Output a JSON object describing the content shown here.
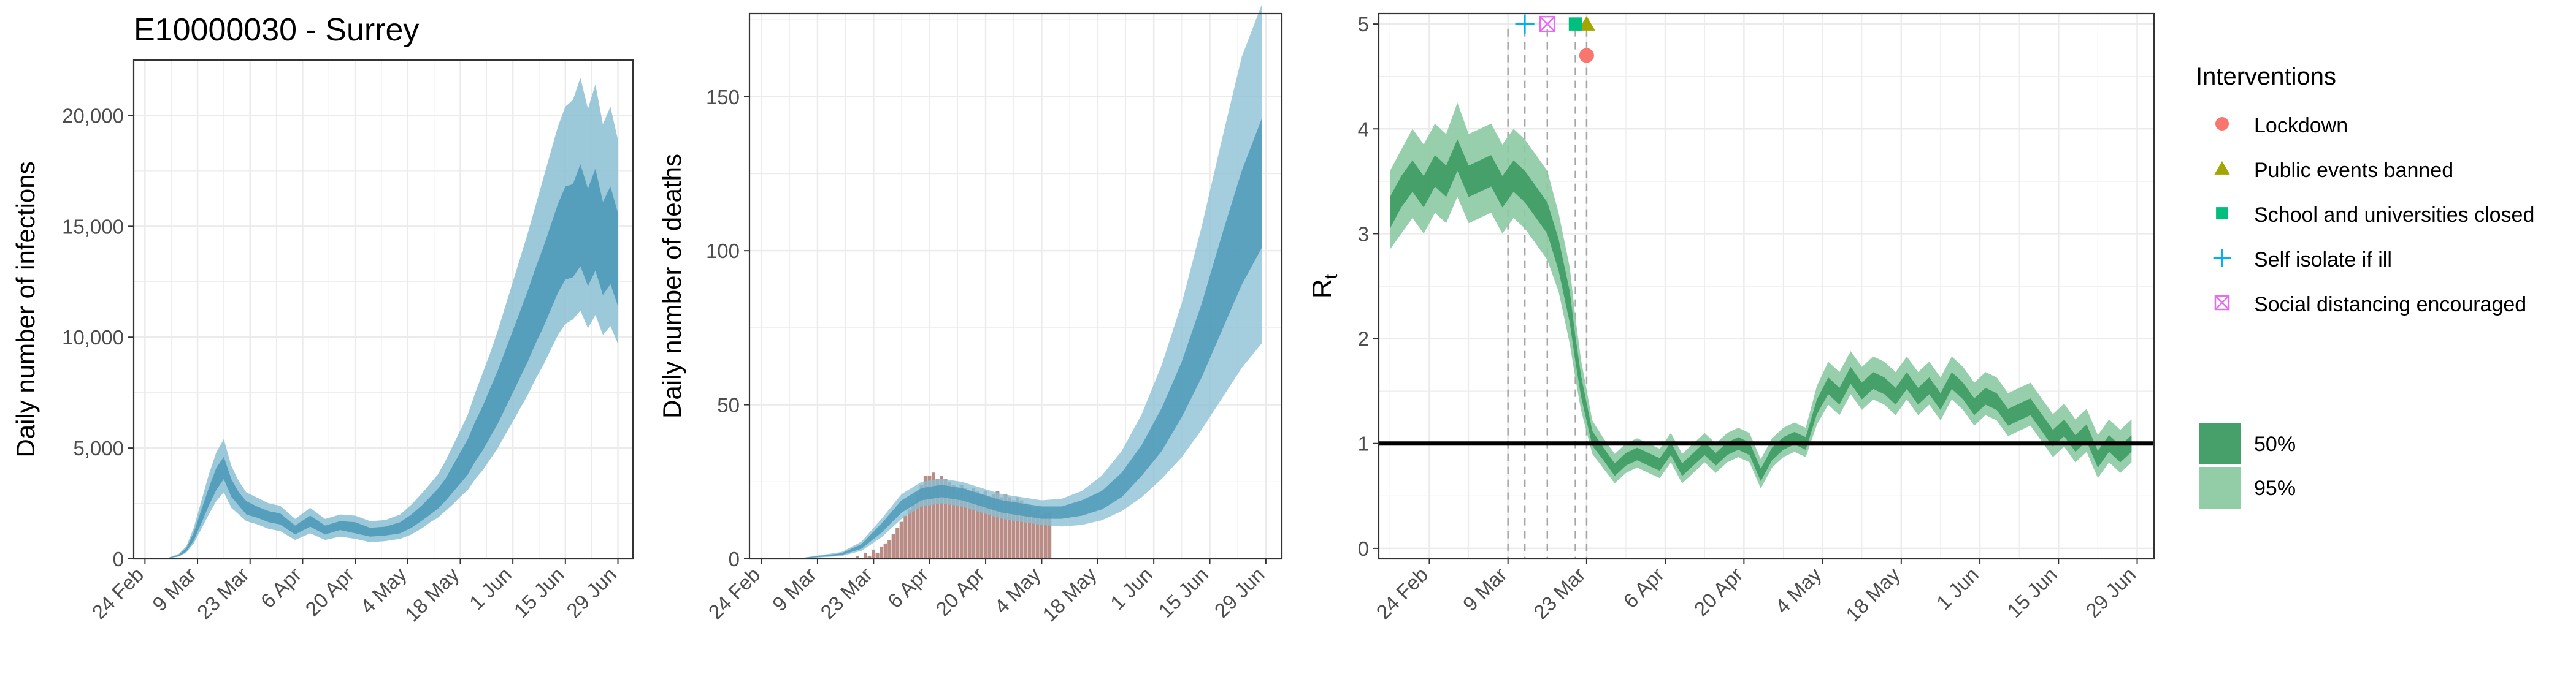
{
  "title": "E10000030 - Surrey",
  "colors": {
    "infection_band": "#4e9ab8",
    "infection_band_95": "#8bbfd4",
    "death_bars": "#b98c86",
    "rt_50": "#3d9a62",
    "rt_95": "#8ccaa3",
    "lockdown": "#f8766d",
    "events": "#a3a500",
    "schools": "#00bf7d",
    "isolate": "#00b0f6",
    "distancing": "#e76bf3",
    "grid": "#ebebeb",
    "axis_text": "#4d4d4d"
  },
  "chart_data": [
    {
      "type": "area",
      "name": "infections",
      "title": "E10000030 - Surrey",
      "xlabel": "",
      "ylabel": "Daily number of infections",
      "xticks": [
        "24 Feb",
        "9 Mar",
        "23 Mar",
        "6 Apr",
        "20 Apr",
        "4 May",
        "18 May",
        "1 Jun",
        "15 Jun",
        "29 Jun"
      ],
      "yticks": [
        "0",
        "5,000",
        "10,000",
        "15,000",
        "20,000"
      ],
      "ytick_values": [
        0,
        5000,
        10000,
        15000,
        20000
      ],
      "xlim": [
        -3,
        130
      ],
      "ylim": [
        0,
        22500
      ],
      "day_index_note": "day 0 = 24 Feb",
      "days": [
        2,
        6,
        9,
        11,
        13,
        15,
        17,
        19,
        21,
        23,
        25,
        27,
        30,
        33,
        36,
        40,
        44,
        48,
        52,
        56,
        60,
        64,
        68,
        71,
        74,
        76,
        78,
        80,
        82,
        84,
        86,
        88,
        90,
        92,
        94,
        96,
        98,
        100,
        102,
        104,
        106,
        108,
        110,
        112,
        114,
        116,
        118,
        120,
        122,
        124,
        126
      ],
      "median": [
        0,
        30,
        150,
        400,
        1000,
        1900,
        2800,
        3600,
        4100,
        3200,
        2700,
        2300,
        2100,
        1900,
        1800,
        1300,
        1700,
        1300,
        1500,
        1400,
        1200,
        1250,
        1400,
        1700,
        2100,
        2400,
        2700,
        3100,
        3600,
        4100,
        4600,
        5300,
        5900,
        6600,
        7300,
        8100,
        8900,
        9700,
        10500,
        11400,
        12200,
        13100,
        14000,
        14700,
        14800,
        15500,
        14500,
        15300,
        14000,
        14600,
        13500
      ],
      "lower50": [
        0,
        25,
        120,
        330,
        820,
        1600,
        2400,
        3100,
        3600,
        2800,
        2400,
        2000,
        1850,
        1650,
        1550,
        1100,
        1450,
        1100,
        1300,
        1150,
        1000,
        1050,
        1150,
        1400,
        1750,
        2000,
        2250,
        2600,
        3000,
        3400,
        3800,
        4400,
        4900,
        5500,
        6100,
        6800,
        7500,
        8200,
        8900,
        9700,
        10400,
        11200,
        12000,
        12600,
        12700,
        13200,
        12300,
        13000,
        11900,
        12400,
        11400
      ],
      "upper50": [
        0,
        35,
        180,
        470,
        1180,
        2200,
        3200,
        4100,
        4600,
        3600,
        3000,
        2600,
        2350,
        2150,
        2050,
        1500,
        1950,
        1500,
        1700,
        1650,
        1400,
        1450,
        1650,
        2000,
        2450,
        2800,
        3150,
        3600,
        4200,
        4800,
        5400,
        6200,
        6900,
        7700,
        8500,
        9400,
        10300,
        11200,
        12100,
        13100,
        14000,
        15000,
        16000,
        16800,
        16900,
        17800,
        16700,
        17600,
        16100,
        16800,
        15600
      ],
      "lower95": [
        0,
        20,
        100,
        280,
        700,
        1350,
        2000,
        2600,
        3000,
        2300,
        2000,
        1700,
        1550,
        1350,
        1250,
        850,
        1150,
        850,
        1000,
        900,
        750,
        800,
        900,
        1100,
        1400,
        1650,
        1850,
        2150,
        2450,
        2800,
        3100,
        3600,
        4000,
        4500,
        5000,
        5600,
        6200,
        6800,
        7400,
        8100,
        8700,
        9400,
        10100,
        10600,
        10800,
        11200,
        10400,
        11000,
        10100,
        10500,
        9700
      ],
      "upper95": [
        0,
        40,
        220,
        560,
        1400,
        2600,
        3800,
        4800,
        5400,
        4200,
        3500,
        3000,
        2750,
        2500,
        2400,
        1800,
        2300,
        1800,
        2000,
        1950,
        1700,
        1750,
        2000,
        2450,
        3000,
        3400,
        3800,
        4400,
        5100,
        5800,
        6500,
        7500,
        8400,
        9300,
        10300,
        11400,
        12500,
        13600,
        14700,
        15900,
        17100,
        18300,
        19500,
        20400,
        20700,
        21700,
        20300,
        21400,
        19600,
        20400,
        18900
      ]
    },
    {
      "type": "bar+area",
      "name": "deaths",
      "ylabel": "Daily number of deaths",
      "xticks": [
        "24 Feb",
        "9 Mar",
        "23 Mar",
        "6 Apr",
        "20 Apr",
        "4 May",
        "18 May",
        "1 Jun",
        "15 Jun",
        "29 Jun"
      ],
      "yticks": [
        "0",
        "50",
        "100",
        "150"
      ],
      "ytick_values": [
        0,
        50,
        100,
        150
      ],
      "xlim": [
        -3,
        130
      ],
      "ylim": [
        0,
        177
      ],
      "bars_start_day": 24,
      "observed_deaths": [
        1,
        0,
        2,
        1,
        3,
        2,
        4,
        5,
        6,
        8,
        10,
        12,
        14,
        16,
        18,
        21,
        24,
        27,
        27,
        28,
        26,
        27,
        26,
        25,
        24,
        22,
        24,
        23,
        22,
        23,
        22,
        21,
        22,
        20,
        21,
        22,
        20,
        21,
        20,
        19,
        20,
        19,
        18,
        17,
        15,
        16,
        14,
        15,
        15
      ],
      "days": [
        0,
        10,
        20,
        25,
        30,
        35,
        40,
        45,
        50,
        55,
        60,
        65,
        70,
        75,
        80,
        85,
        90,
        95,
        100,
        105,
        110,
        115,
        120,
        125
      ],
      "median": [
        0,
        0.2,
        1.5,
        4,
        10,
        17,
        21,
        22,
        21,
        19,
        17,
        16,
        15,
        15,
        16,
        19,
        24,
        32,
        42,
        55,
        71,
        89,
        108,
        122
      ],
      "lower50": [
        0,
        0.15,
        1.2,
        3.3,
        8.5,
        15,
        19,
        20,
        19,
        17,
        15,
        14,
        13,
        13,
        14,
        16,
        20,
        27,
        35,
        46,
        59,
        74,
        89,
        101
      ],
      "upper50": [
        0,
        0.25,
        1.8,
        4.8,
        11.5,
        19,
        23,
        24,
        23,
        21,
        19,
        18,
        17,
        17,
        19,
        22,
        28,
        37,
        49,
        64,
        83,
        105,
        126,
        143
      ],
      "lower95": [
        0,
        0.1,
        0.9,
        2.6,
        7,
        13,
        17,
        18,
        17,
        15,
        13,
        12,
        11,
        10.5,
        11,
        12.5,
        15.5,
        20,
        26,
        33,
        42,
        52,
        62,
        70
      ],
      "upper95": [
        0,
        0.3,
        2.2,
        5.6,
        13,
        21,
        25,
        26,
        25,
        23,
        21,
        20,
        19,
        19.5,
        22,
        27,
        35,
        47,
        63,
        83,
        108,
        136,
        163,
        180
      ]
    },
    {
      "type": "line-band",
      "name": "rt",
      "ylabel": "R",
      "ylabel_subscript": "t",
      "xticks": [
        "24 Feb",
        "9 Mar",
        "23 Mar",
        "6 Apr",
        "20 Apr",
        "4 May",
        "18 May",
        "1 Jun",
        "15 Jun",
        "29 Jun"
      ],
      "yticks": [
        "0",
        "1",
        "2",
        "3",
        "4",
        "5"
      ],
      "ytick_values": [
        0,
        1,
        2,
        3,
        4,
        5
      ],
      "xlim": [
        -9,
        129
      ],
      "ylim": [
        -0.1,
        5.1
      ],
      "reference_line": 1,
      "days": [
        -7,
        -5,
        -3,
        -1,
        1,
        3,
        5,
        7,
        9,
        11,
        13,
        15,
        17,
        19,
        21,
        23,
        25,
        26,
        27,
        29,
        31,
        33,
        35,
        37,
        39,
        41,
        43,
        45,
        47,
        49,
        51,
        53,
        55,
        57,
        59,
        61,
        63,
        65,
        67,
        69,
        71,
        73,
        75,
        77,
        79,
        81,
        83,
        85,
        87,
        89,
        91,
        93,
        95,
        97,
        99,
        101,
        103,
        105,
        107,
        109,
        111,
        113,
        115,
        117,
        119,
        121,
        123,
        125
      ],
      "median": [
        3.2,
        3.4,
        3.55,
        3.4,
        3.6,
        3.5,
        3.75,
        3.5,
        3.55,
        3.6,
        3.4,
        3.55,
        3.45,
        3.3,
        3.15,
        2.8,
        2.3,
        1.9,
        1.55,
        1.05,
        0.9,
        0.75,
        0.85,
        0.9,
        0.85,
        0.8,
        0.95,
        0.75,
        0.85,
        0.95,
        0.85,
        0.95,
        1.0,
        0.95,
        0.7,
        0.9,
        1.0,
        1.05,
        1.0,
        1.35,
        1.55,
        1.45,
        1.65,
        1.5,
        1.6,
        1.55,
        1.45,
        1.6,
        1.45,
        1.55,
        1.4,
        1.6,
        1.5,
        1.35,
        1.45,
        1.4,
        1.25,
        1.3,
        1.35,
        1.2,
        1.05,
        1.15,
        1.0,
        1.1,
        0.85,
        1.0,
        0.9,
        1.0
      ],
      "lower50": [
        3.05,
        3.25,
        3.4,
        3.25,
        3.45,
        3.35,
        3.6,
        3.35,
        3.4,
        3.45,
        3.25,
        3.4,
        3.3,
        3.15,
        3.0,
        2.65,
        2.15,
        1.78,
        1.45,
        0.98,
        0.84,
        0.69,
        0.79,
        0.84,
        0.79,
        0.74,
        0.89,
        0.69,
        0.79,
        0.89,
        0.79,
        0.89,
        0.94,
        0.89,
        0.64,
        0.84,
        0.94,
        0.99,
        0.94,
        1.28,
        1.47,
        1.37,
        1.57,
        1.42,
        1.52,
        1.47,
        1.37,
        1.52,
        1.37,
        1.47,
        1.32,
        1.52,
        1.42,
        1.27,
        1.37,
        1.32,
        1.17,
        1.22,
        1.27,
        1.12,
        0.97,
        1.07,
        0.92,
        1.02,
        0.77,
        0.92,
        0.82,
        0.92
      ],
      "upper50": [
        3.35,
        3.55,
        3.7,
        3.55,
        3.75,
        3.65,
        3.9,
        3.65,
        3.7,
        3.75,
        3.55,
        3.7,
        3.6,
        3.45,
        3.3,
        2.95,
        2.45,
        2.02,
        1.65,
        1.12,
        0.96,
        0.81,
        0.91,
        0.96,
        0.91,
        0.86,
        1.01,
        0.81,
        0.91,
        1.01,
        0.91,
        1.01,
        1.06,
        1.01,
        0.76,
        0.96,
        1.06,
        1.11,
        1.06,
        1.42,
        1.63,
        1.53,
        1.73,
        1.58,
        1.68,
        1.63,
        1.53,
        1.68,
        1.53,
        1.63,
        1.48,
        1.68,
        1.58,
        1.43,
        1.53,
        1.48,
        1.33,
        1.38,
        1.43,
        1.28,
        1.13,
        1.23,
        1.08,
        1.18,
        0.93,
        1.08,
        0.98,
        1.08
      ],
      "lower95": [
        2.85,
        3.0,
        3.15,
        3.0,
        3.2,
        3.1,
        3.35,
        3.1,
        3.15,
        3.2,
        3.0,
        3.15,
        3.05,
        2.9,
        2.75,
        2.45,
        1.95,
        1.62,
        1.32,
        0.9,
        0.76,
        0.62,
        0.72,
        0.77,
        0.72,
        0.67,
        0.82,
        0.62,
        0.72,
        0.82,
        0.72,
        0.82,
        0.87,
        0.82,
        0.57,
        0.77,
        0.87,
        0.92,
        0.87,
        1.18,
        1.37,
        1.27,
        1.47,
        1.32,
        1.42,
        1.37,
        1.27,
        1.42,
        1.27,
        1.37,
        1.22,
        1.42,
        1.32,
        1.17,
        1.27,
        1.22,
        1.07,
        1.12,
        1.17,
        1.02,
        0.87,
        0.97,
        0.82,
        0.92,
        0.67,
        0.82,
        0.72,
        0.82
      ],
      "upper95": [
        3.6,
        3.8,
        4.0,
        3.85,
        4.05,
        3.95,
        4.25,
        3.95,
        4.0,
        4.05,
        3.85,
        4.0,
        3.9,
        3.75,
        3.6,
        3.2,
        2.68,
        2.2,
        1.8,
        1.22,
        1.05,
        0.9,
        1.0,
        1.05,
        1.0,
        0.95,
        1.1,
        0.9,
        1.0,
        1.1,
        1.0,
        1.1,
        1.15,
        1.1,
        0.85,
        1.05,
        1.15,
        1.2,
        1.15,
        1.55,
        1.78,
        1.68,
        1.88,
        1.73,
        1.83,
        1.78,
        1.68,
        1.83,
        1.68,
        1.78,
        1.63,
        1.83,
        1.73,
        1.58,
        1.68,
        1.63,
        1.48,
        1.53,
        1.58,
        1.43,
        1.28,
        1.38,
        1.23,
        1.33,
        1.08,
        1.23,
        1.13,
        1.23
      ],
      "interventions": [
        {
          "name": "Lockdown",
          "day": 28,
          "y": 4.7,
          "shape": "circle",
          "color": "#f8766d"
        },
        {
          "name": "Public events banned",
          "day": 28,
          "y": 5.0,
          "shape": "triangle",
          "color": "#a3a500"
        },
        {
          "name": "School and universities closed",
          "day": 26,
          "y": 5.0,
          "shape": "square",
          "color": "#00bf7d"
        },
        {
          "name": "Self isolate if ill",
          "day": 17,
          "y": 5.0,
          "shape": "plus",
          "color": "#00b0f6"
        },
        {
          "name": "Social distancing encouraged",
          "day": 21,
          "y": 5.0,
          "shape": "boxx",
          "color": "#e76bf3"
        }
      ],
      "vlines": [
        14,
        17,
        21,
        26,
        28
      ]
    }
  ],
  "legend": {
    "title": "Interventions",
    "items": [
      "Lockdown",
      "Public events banned",
      "School and universities closed",
      "Self isolate if ill",
      "Social distancing encouraged"
    ],
    "bands_title": "",
    "bands": [
      "50%",
      "95%"
    ]
  }
}
